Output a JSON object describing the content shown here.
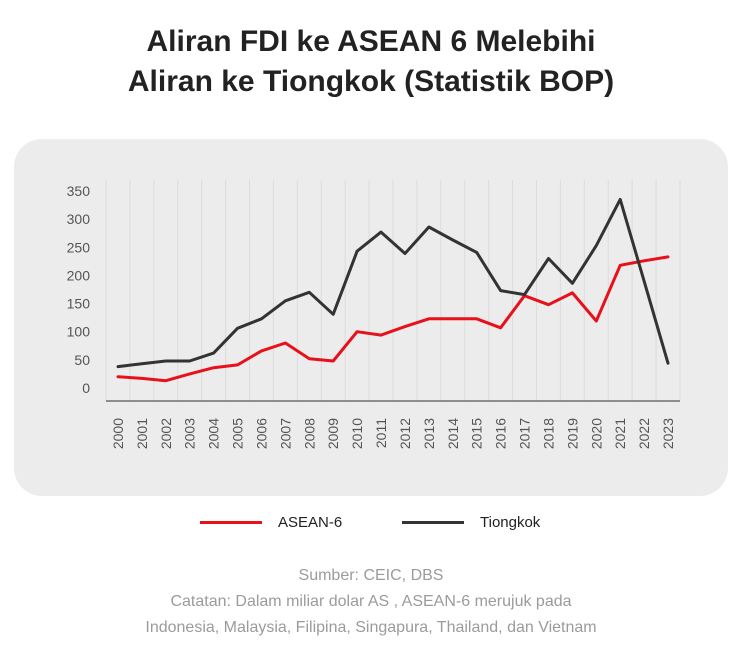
{
  "title": {
    "line1": "Aliran FDI ke ASEAN 6 Melebihi",
    "line2": "Aliran ke Tiongkok (Statistik BOP)"
  },
  "footer": {
    "source": "Sumber: CEIC, DBS",
    "note_line1": "Catatan: Dalam miliar dolar AS , ASEAN-6 merujuk pada",
    "note_line2": "Indonesia, Malaysia, Filipina, Singapura, Thailand, dan Vietnam"
  },
  "colors": {
    "asean": "#e8101a",
    "china": "#333333",
    "panel_bg": "#ececec",
    "axis_text": "#555555"
  },
  "chart_data": {
    "type": "line",
    "x": [
      "2000",
      "2001",
      "2002",
      "2003",
      "2004",
      "2005",
      "2006",
      "2007",
      "2008",
      "2009",
      "2010",
      "2011",
      "2012",
      "2013",
      "2014",
      "2015",
      "2016",
      "2017",
      "2018",
      "2019",
      "2020",
      "2021",
      "2022",
      "2023"
    ],
    "ylim": [
      0,
      350
    ],
    "yticks": [
      0,
      50,
      100,
      150,
      200,
      250,
      300,
      350
    ],
    "grid": "vertical",
    "legend_position": "bottom",
    "series": [
      {
        "name": "ASEAN-6",
        "color": "#e8101a",
        "values": [
          20,
          17,
          13,
          25,
          36,
          41,
          66,
          80,
          52,
          48,
          100,
          94,
          109,
          123,
          123,
          123,
          107,
          164,
          148,
          169,
          119,
          218,
          226,
          233
        ]
      },
      {
        "name": "Tiongkok",
        "color": "#333333",
        "values": [
          38,
          43,
          48,
          48,
          62,
          106,
          123,
          155,
          170,
          131,
          243,
          277,
          239,
          286,
          263,
          241,
          173,
          166,
          230,
          186,
          253,
          335,
          190,
          44
        ]
      }
    ]
  }
}
